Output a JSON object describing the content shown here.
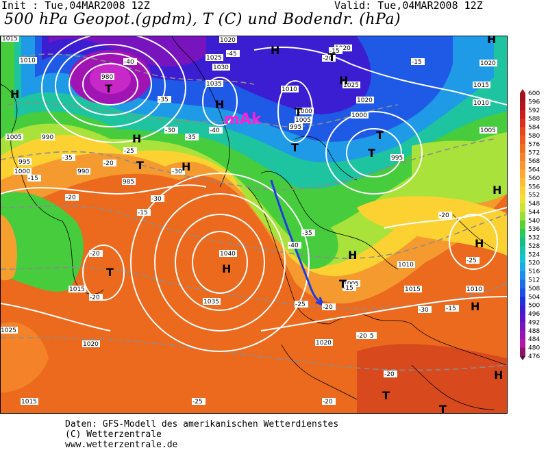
{
  "header": {
    "init": "Init : Tue,04MAR2008 12Z",
    "valid": "Valid: Tue,04MAR2008 12Z",
    "title": "500 hPa Geopot.(gpdm), T (C) und Bodendr. (hPa)"
  },
  "legend": {
    "levels": [
      "600",
      "596",
      "592",
      "588",
      "584",
      "580",
      "576",
      "572",
      "568",
      "564",
      "560",
      "556",
      "552",
      "548",
      "544",
      "540",
      "536",
      "532",
      "528",
      "524",
      "520",
      "516",
      "512",
      "508",
      "504",
      "500",
      "496",
      "492",
      "488",
      "484",
      "480",
      "476"
    ],
    "colors": [
      "#a0141e",
      "#b4141e",
      "#c81e1e",
      "#dc2d1e",
      "#e6461e",
      "#ec5a1e",
      "#f06e1e",
      "#f48228",
      "#f89632",
      "#fcaa32",
      "#fcbe32",
      "#fcd232",
      "#f0e132",
      "#c8e632",
      "#96e132",
      "#5ad232",
      "#28c85a",
      "#14be82",
      "#14c3aa",
      "#14c3d2",
      "#1eaae6",
      "#1e8ceb",
      "#1e6eeb",
      "#1e50e6",
      "#1e32dc",
      "#3c1ed2",
      "#5a14c8",
      "#7814be",
      "#9614b4",
      "#b414aa",
      "#8c1464",
      "#5a0a3c"
    ]
  },
  "overlay": {
    "airmass_label": "mAk",
    "high_symbol": "H",
    "low_symbol": "T",
    "pressure_labels": [
      "1015",
      "1010",
      "1005",
      "1000",
      "995",
      "990",
      "985",
      "980",
      "1020",
      "1025",
      "1030",
      "1035",
      "1040",
      "1005",
      "1000",
      "995",
      "990",
      "1010",
      "1020",
      "1025",
      "1020",
      "1035",
      "1010",
      "1015",
      "1005",
      "1000",
      "995",
      "1015",
      "1010",
      "1005",
      "1020",
      "1010",
      "1015",
      "1020",
      "1025",
      "1015",
      "1020"
    ],
    "temp_labels": [
      "-40",
      "-45",
      "-35",
      "-30",
      "-25",
      "-20",
      "-35",
      "-40",
      "-30",
      "-35",
      "-40",
      "-25",
      "-20",
      "-15",
      "-35",
      "-30",
      "-25",
      "-20",
      "-15",
      "-20",
      "-20",
      "-15",
      "-20",
      "-15",
      "-20",
      "-20",
      "-15",
      "-20",
      "-35",
      "-30",
      "-25",
      "-20",
      "-15"
    ]
  },
  "footer": {
    "line1": "Daten: GFS-Modell des amerikanischen Wetterdienstes",
    "line2": "(C) Wetterzentrale",
    "line3": "www.wetterzentrale.de"
  }
}
